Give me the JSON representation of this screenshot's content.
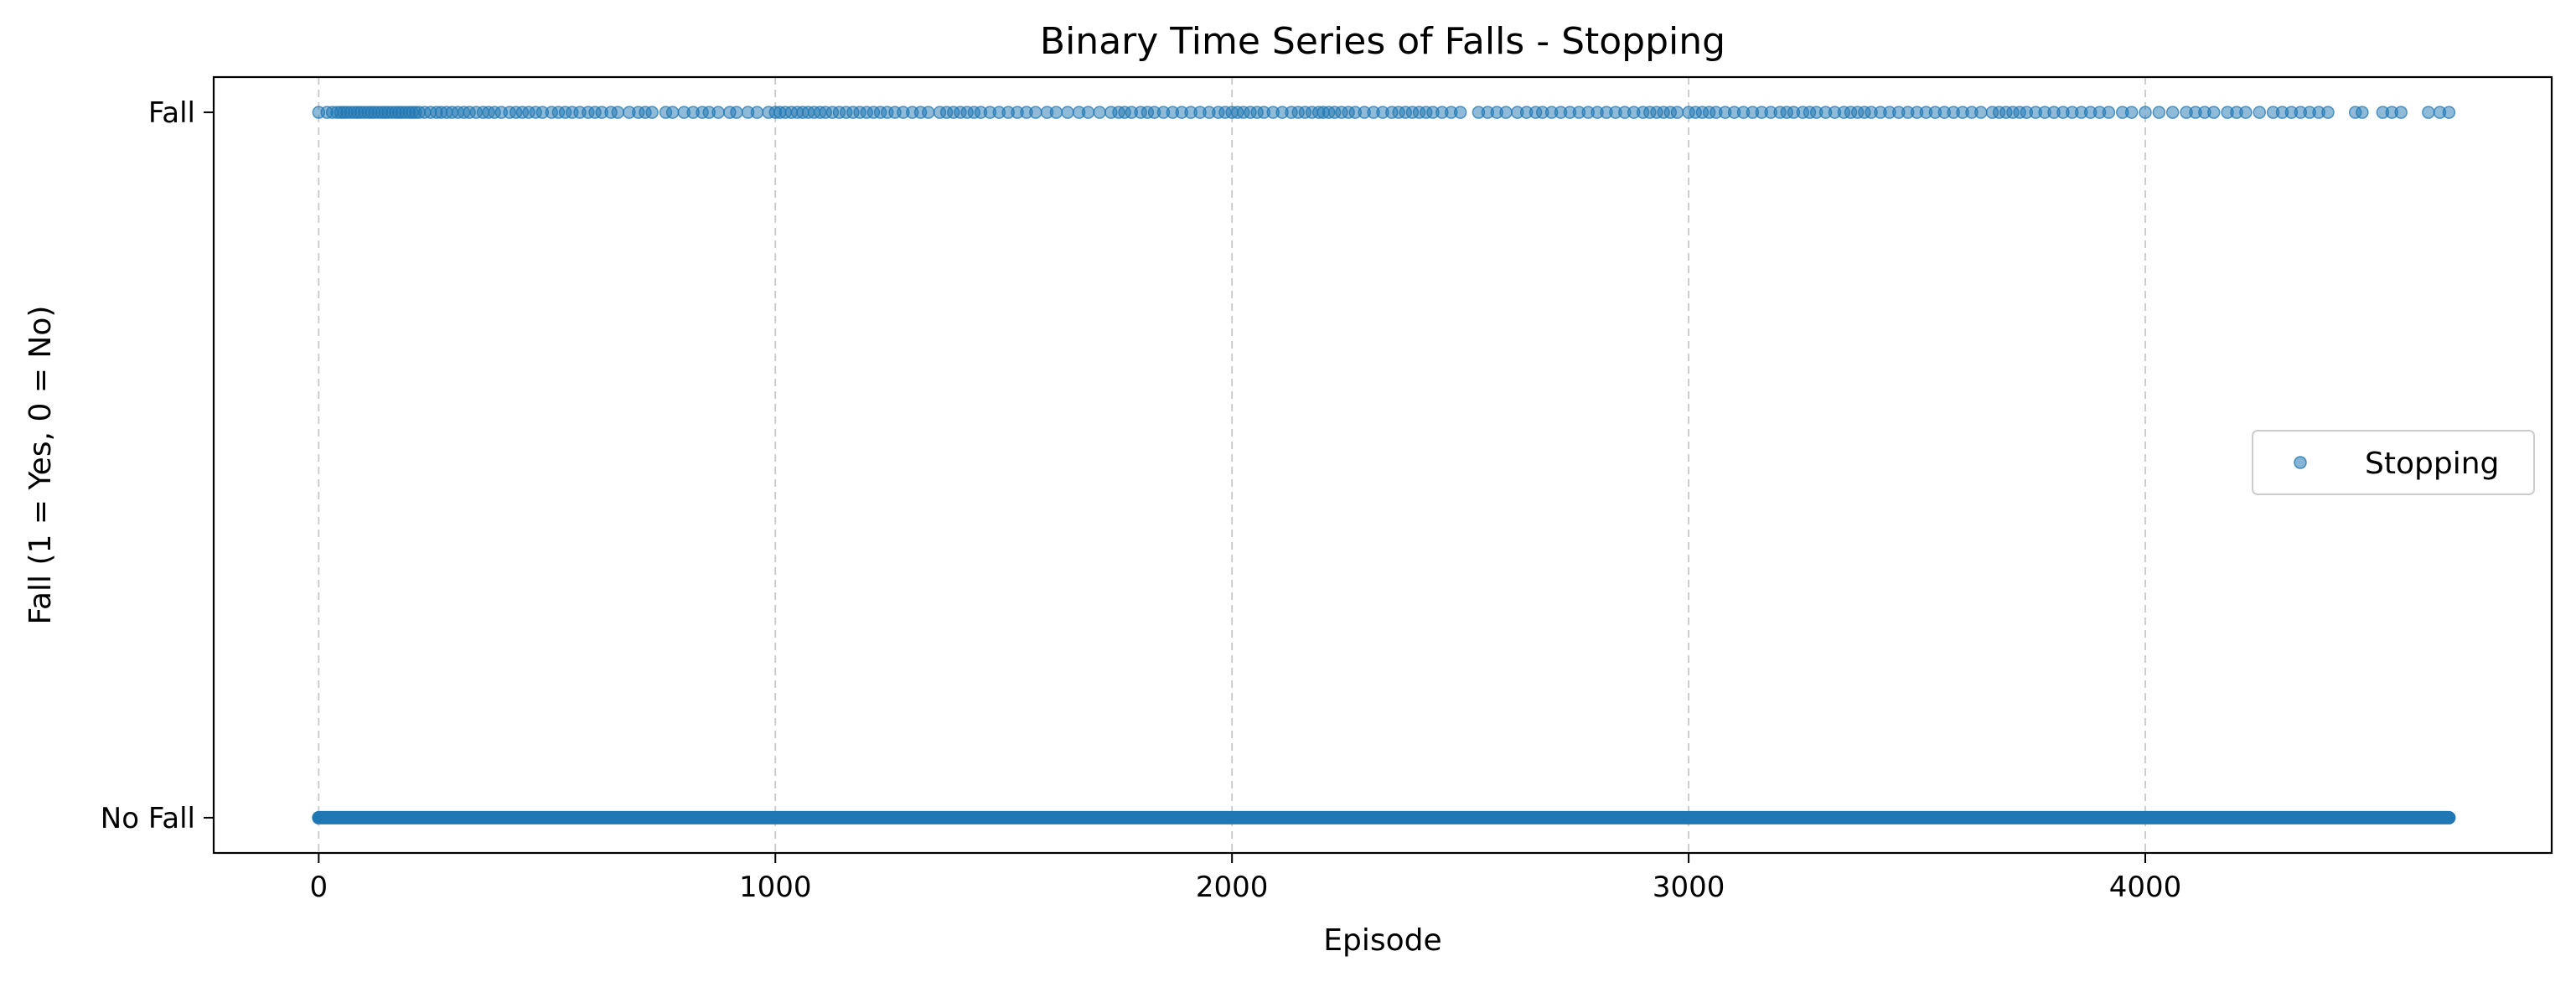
{
  "chart_data": {
    "type": "scatter",
    "title": "Binary Time Series of Falls - Stopping",
    "xlabel": "Episode",
    "ylabel": "Fall (1 = Yes, 0 = No)",
    "xlim": [
      -230,
      4890
    ],
    "ylim": [
      -0.05,
      1.05
    ],
    "x_ticks": [
      0,
      1000,
      2000,
      3000,
      4000
    ],
    "y_ticks": [
      {
        "value": 0,
        "label": "No Fall"
      },
      {
        "value": 1,
        "label": "Fall"
      }
    ],
    "grid": "vertical dashed at x ticks",
    "legend": {
      "position": "center-right",
      "entries": [
        "Stopping"
      ]
    },
    "series": [
      {
        "name": "Stopping",
        "color": "#1f77b4",
        "no_fall": {
          "y": 0,
          "x_range": [
            0,
            4665
          ],
          "note_density": "continuous"
        },
        "fall": {
          "y": 1,
          "x": [
            0,
            18,
            30,
            40,
            48,
            55,
            62,
            70,
            78,
            85,
            92,
            100,
            108,
            115,
            122,
            130,
            138,
            145,
            152,
            160,
            168,
            175,
            182,
            190,
            198,
            205,
            212,
            220,
            232,
            245,
            258,
            268,
            280,
            292,
            305,
            318,
            330,
            345,
            360,
            372,
            385,
            400,
            418,
            432,
            446,
            460,
            475,
            490,
            510,
            525,
            540,
            555,
            572,
            590,
            605,
            620,
            640,
            655,
            680,
            700,
            715,
            730,
            760,
            775,
            800,
            820,
            840,
            855,
            875,
            900,
            915,
            940,
            960,
            985,
            1000,
            1010,
            1022,
            1035,
            1048,
            1060,
            1072,
            1085,
            1098,
            1110,
            1125,
            1140,
            1155,
            1170,
            1185,
            1200,
            1215,
            1230,
            1245,
            1262,
            1280,
            1300,
            1318,
            1335,
            1360,
            1375,
            1390,
            1405,
            1420,
            1435,
            1450,
            1470,
            1490,
            1510,
            1530,
            1550,
            1570,
            1595,
            1615,
            1640,
            1665,
            1685,
            1710,
            1735,
            1752,
            1765,
            1780,
            1800,
            1815,
            1830,
            1850,
            1870,
            1890,
            1910,
            1930,
            1950,
            1970,
            1985,
            2000,
            2012,
            2025,
            2040,
            2055,
            2070,
            2090,
            2110,
            2130,
            2145,
            2160,
            2175,
            2190,
            2200,
            2212,
            2225,
            2240,
            2255,
            2270,
            2290,
            2310,
            2330,
            2350,
            2365,
            2380,
            2395,
            2410,
            2425,
            2440,
            2460,
            2480,
            2500,
            2540,
            2560,
            2580,
            2600,
            2625,
            2645,
            2665,
            2680,
            2700,
            2720,
            2740,
            2760,
            2780,
            2800,
            2820,
            2840,
            2860,
            2880,
            2900,
            2915,
            2930,
            2945,
            2960,
            2975,
            3000,
            3015,
            3030,
            3045,
            3060,
            3080,
            3100,
            3120,
            3140,
            3160,
            3180,
            3200,
            3215,
            3230,
            3250,
            3265,
            3280,
            3300,
            3320,
            3340,
            3355,
            3370,
            3385,
            3400,
            3420,
            3440,
            3460,
            3480,
            3500,
            3520,
            3540,
            3560,
            3580,
            3600,
            3620,
            3640,
            3665,
            3680,
            3695,
            3710,
            3725,
            3740,
            3760,
            3780,
            3800,
            3820,
            3840,
            3860,
            3880,
            3900,
            3920,
            3950,
            3970,
            4000,
            4030,
            4060,
            4090,
            4110,
            4130,
            4150,
            4180,
            4200,
            4220,
            4250,
            4280,
            4300,
            4320,
            4340,
            4360,
            4380,
            4400,
            4460,
            4475,
            4520,
            4540,
            4560,
            4620,
            4645,
            4665
          ]
        }
      }
    ]
  }
}
